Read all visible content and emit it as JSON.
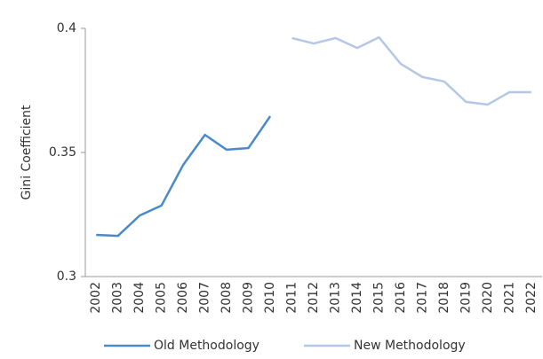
{
  "chart_data": {
    "type": "line",
    "y_label": "Gini Coefficient",
    "categories": [
      "2002",
      "2003",
      "2004",
      "2005",
      "2006",
      "2007",
      "2008",
      "2009",
      "2010",
      "2011",
      "2012",
      "2013",
      "2014",
      "2015",
      "2016",
      "2017",
      "2018",
      "2019",
      "2020",
      "2021",
      "2022"
    ],
    "series": [
      {
        "name": "Old Methodology",
        "color": "#4a8ac9",
        "values": [
          0.3168,
          0.3164,
          0.3246,
          0.3286,
          0.345,
          0.3571,
          0.3511,
          0.3518,
          0.3646,
          null,
          null,
          null,
          null,
          null,
          null,
          null,
          null,
          null,
          null,
          null,
          null
        ]
      },
      {
        "name": "New Methodology",
        "color": "#b4c7e7",
        "values": [
          null,
          null,
          null,
          null,
          null,
          null,
          null,
          null,
          null,
          0.3961,
          0.3939,
          0.3961,
          0.3921,
          0.3964,
          0.3857,
          0.3804,
          0.3786,
          0.3704,
          0.3693,
          0.3743,
          0.3743
        ]
      }
    ],
    "ylim": [
      0.3,
      0.4
    ],
    "yticks": [
      0.3,
      0.35,
      0.4
    ],
    "legend": "bottom"
  }
}
